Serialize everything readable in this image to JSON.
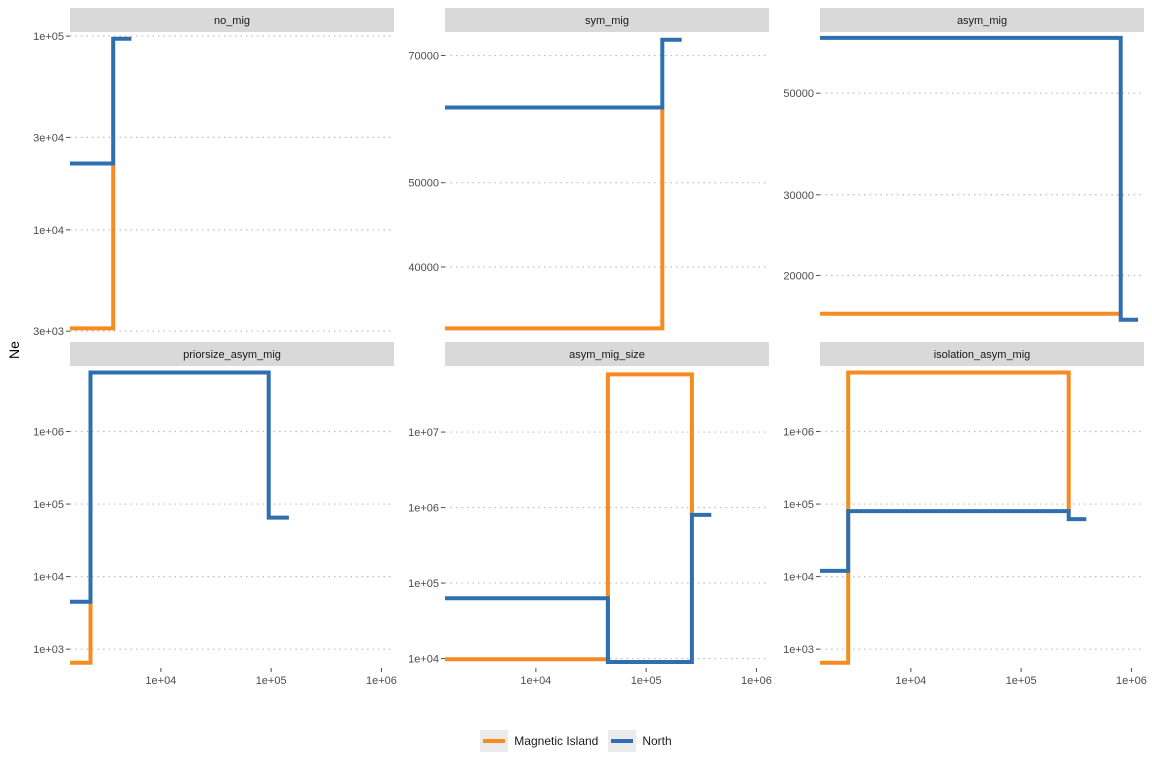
{
  "colors": {
    "magnetic_island": "#f68b22",
    "north": "#2f6fb0",
    "strip_bg": "#d9d9d9",
    "grid": "#bdbdbd"
  },
  "y_axis_title": "Ne",
  "legend": {
    "items": [
      {
        "label": "Magnetic Island",
        "color": "#f68b22"
      },
      {
        "label": "North",
        "color": "#2f6fb0"
      }
    ]
  },
  "chart_data": [
    {
      "type": "line",
      "step": true,
      "title": "no_mig",
      "x_scale": "log",
      "y_scale": "log",
      "xlim": [
        1500,
        1300000
      ],
      "ylim": [
        2900,
        105000
      ],
      "x_ticks": [],
      "x_tick_labels": [],
      "y_ticks": [
        3000,
        10000,
        30000,
        100000
      ],
      "y_tick_labels": [
        "3e+03",
        "1e+04",
        "3e+04",
        "1e+05"
      ],
      "series": [
        {
          "name": "Magnetic Island",
          "color": "#f68b22",
          "x": [
            1500,
            3700,
            3700
          ],
          "y": [
            3100,
            3100,
            22000
          ]
        },
        {
          "name": "North",
          "color": "#2f6fb0",
          "x": [
            1500,
            3700,
            3700,
            5400
          ],
          "y": [
            22000,
            22000,
            97000,
            97000
          ]
        }
      ]
    },
    {
      "type": "line",
      "step": true,
      "title": "sym_mig",
      "x_scale": "log",
      "y_scale": "log",
      "xlim": [
        1500,
        1300000
      ],
      "ylim": [
        33500,
        74500
      ],
      "x_ticks": [],
      "x_tick_labels": [],
      "y_ticks": [
        40000,
        50000,
        70000
      ],
      "y_tick_labels": [
        "40000",
        "50000",
        "70000"
      ],
      "series": [
        {
          "name": "Magnetic Island",
          "color": "#f68b22",
          "x": [
            1500,
            140000,
            140000
          ],
          "y": [
            34000,
            34000,
            61000
          ]
        },
        {
          "name": "North",
          "color": "#2f6fb0",
          "x": [
            1500,
            140000,
            140000,
            210000
          ],
          "y": [
            61000,
            61000,
            73000,
            73000
          ]
        }
      ]
    },
    {
      "type": "line",
      "step": true,
      "title": "asym_mig",
      "x_scale": "log",
      "y_scale": "log",
      "xlim": [
        1500,
        1300000
      ],
      "ylim": [
        14900,
        68000
      ],
      "x_ticks": [],
      "x_tick_labels": [],
      "y_ticks": [
        20000,
        30000,
        50000
      ],
      "y_tick_labels": [
        "20000",
        "30000",
        "50000"
      ],
      "series": [
        {
          "name": "Magnetic Island",
          "color": "#f68b22",
          "x": [
            1500,
            800000
          ],
          "y": [
            16500,
            16500
          ]
        },
        {
          "name": "North",
          "color": "#2f6fb0",
          "x": [
            1500,
            800000,
            800000,
            1150000
          ],
          "y": [
            66000,
            66000,
            16000,
            16000
          ]
        }
      ]
    },
    {
      "type": "line",
      "step": true,
      "title": "priorsize_asym_mig",
      "x_scale": "log",
      "y_scale": "log",
      "xlim": [
        1500,
        1300000
      ],
      "ylim": [
        550,
        8000000
      ],
      "x_ticks": [
        10000,
        100000,
        1000000
      ],
      "x_tick_labels": [
        "1e+04",
        "1e+05",
        "1e+06"
      ],
      "y_ticks": [
        1000,
        10000,
        100000,
        1000000
      ],
      "y_tick_labels": [
        "1e+03",
        "1e+04",
        "1e+05",
        "1e+06"
      ],
      "series": [
        {
          "name": "Magnetic Island",
          "color": "#f68b22",
          "x": [
            1500,
            2300,
            2300
          ],
          "y": [
            650,
            650,
            4500
          ]
        },
        {
          "name": "North",
          "color": "#2f6fb0",
          "x": [
            1500,
            2300,
            2300,
            95000,
            95000,
            145000
          ],
          "y": [
            4500,
            4500,
            6500000,
            6500000,
            65000,
            65000
          ]
        }
      ]
    },
    {
      "type": "line",
      "step": true,
      "title": "asym_mig_size",
      "x_scale": "log",
      "y_scale": "log",
      "xlim": [
        1500,
        1300000
      ],
      "ylim": [
        7500,
        75000000
      ],
      "x_ticks": [
        10000,
        100000,
        1000000
      ],
      "x_tick_labels": [
        "1e+04",
        "1e+05",
        "1e+06"
      ],
      "y_ticks": [
        10000,
        100000,
        1000000,
        10000000
      ],
      "y_tick_labels": [
        "1e+04",
        "1e+05",
        "1e+06",
        "1e+07"
      ],
      "series": [
        {
          "name": "Magnetic Island",
          "color": "#f68b22",
          "x": [
            1500,
            45000,
            45000,
            260000,
            260000
          ],
          "y": [
            9800,
            9800,
            58000000,
            58000000,
            800000
          ]
        },
        {
          "name": "North",
          "color": "#2f6fb0",
          "x": [
            1500,
            45000,
            45000,
            260000,
            260000,
            390000
          ],
          "y": [
            63000,
            63000,
            9000,
            9000,
            800000,
            800000
          ]
        }
      ]
    },
    {
      "type": "line",
      "step": true,
      "title": "isolation_asym_mig",
      "x_scale": "log",
      "y_scale": "log",
      "xlim": [
        1500,
        1300000
      ],
      "ylim": [
        550,
        8000000
      ],
      "x_ticks": [
        10000,
        100000,
        1000000
      ],
      "x_tick_labels": [
        "1e+04",
        "1e+05",
        "1e+06"
      ],
      "y_ticks": [
        1000,
        10000,
        100000,
        1000000
      ],
      "y_tick_labels": [
        "1e+03",
        "1e+04",
        "1e+05",
        "1e+06"
      ],
      "series": [
        {
          "name": "Magnetic Island",
          "color": "#f68b22",
          "x": [
            1500,
            2700,
            2700,
            270000,
            270000
          ],
          "y": [
            650,
            650,
            6500000,
            6500000,
            80000
          ]
        },
        {
          "name": "North",
          "color": "#2f6fb0",
          "x": [
            1500,
            2700,
            2700,
            270000,
            270000,
            390000
          ],
          "y": [
            12000,
            12000,
            80000,
            80000,
            62000,
            62000
          ]
        }
      ]
    }
  ]
}
